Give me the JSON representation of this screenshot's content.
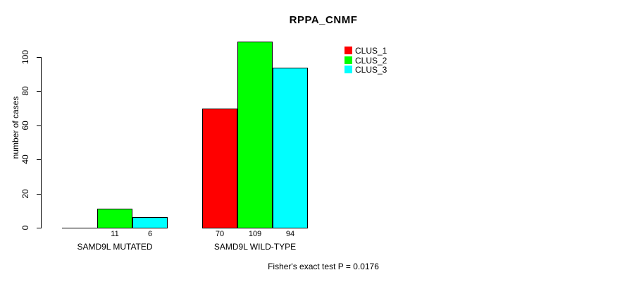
{
  "title": "RPPA_CNMF",
  "footer": "Fisher's exact test P = 0.0176",
  "colors": {
    "background": "#FFFFFF",
    "axis": "#000000",
    "bar_border": "#000000",
    "clus_1": "#FF0000",
    "clus_2": "#00FF00",
    "clus_3": "#00FFFF"
  },
  "legend": {
    "position": "top-right",
    "items": [
      {
        "label": "CLUS_1",
        "color": "#FF0000"
      },
      {
        "label": "CLUS_2",
        "color": "#00FF00"
      },
      {
        "label": "CLUS_3",
        "color": "#00FFFF"
      }
    ]
  },
  "chart_data": {
    "type": "bar",
    "title": "RPPA_CNMF",
    "xlabel": "",
    "ylabel": "number of cases",
    "categories": [
      "SAMD9L MUTATED",
      "SAMD9L WILD-TYPE"
    ],
    "series": [
      {
        "name": "CLUS_1",
        "color": "#FF0000",
        "values": [
          0,
          70
        ],
        "labels": [
          "",
          "70"
        ]
      },
      {
        "name": "CLUS_2",
        "color": "#00FF00",
        "values": [
          11,
          109
        ],
        "labels": [
          "11",
          "109"
        ]
      },
      {
        "name": "CLUS_3",
        "color": "#00FFFF",
        "values": [
          6,
          94
        ],
        "labels": [
          "6",
          "94"
        ]
      }
    ],
    "ylim": [
      0,
      100
    ],
    "yticks": [
      0,
      20,
      40,
      60,
      80,
      100
    ],
    "grid": false,
    "legend_position": "top-right",
    "annotation": "Fisher's exact test P = 0.0176"
  }
}
